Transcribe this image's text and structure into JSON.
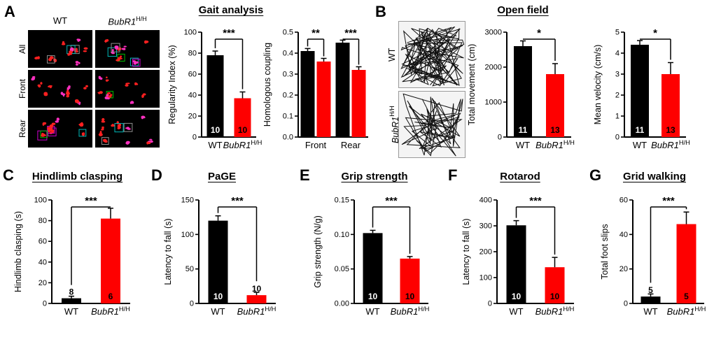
{
  "letters": {
    "A": "A",
    "B": "B",
    "C": "C",
    "D": "D",
    "E": "E",
    "F": "F",
    "G": "G"
  },
  "panelA": {
    "col_wt": "WT",
    "col_mut": {
      "base": "BubR1",
      "sup": "H/H"
    },
    "row_labels": [
      "All",
      "Front",
      "Rear"
    ]
  },
  "panelB": {
    "row_wt": "WT",
    "row_mut": {
      "base": "BubR1",
      "sup": "H/H"
    }
  },
  "chart_data": [
    {
      "id": "regularity-index",
      "panel": "A",
      "type": "bar",
      "title": "Gait analysis",
      "ylabel": "Regularity Index (%)",
      "ylim": [
        0,
        100
      ],
      "ytick_vals": [
        0,
        20,
        40,
        60,
        80,
        100
      ],
      "ytick_labels": [
        "0",
        "20",
        "40",
        "60",
        "80",
        "100"
      ],
      "categories": [
        {
          "label": "WT"
        },
        {
          "label": "BubR1",
          "sup": "H/H",
          "italic": true
        }
      ],
      "values": [
        78,
        37
      ],
      "errors": [
        4,
        6
      ],
      "bar_colors": [
        "#000000",
        "#fe0000"
      ],
      "n_labels": [
        "10",
        "10"
      ],
      "significance": "***"
    },
    {
      "id": "homologous-coupling",
      "panel": "A",
      "type": "grouped_bar",
      "title": null,
      "ylabel": "Homologous coupling",
      "ylim": [
        0,
        0.5
      ],
      "ytick_vals": [
        0,
        0.1,
        0.2,
        0.3,
        0.4,
        0.5
      ],
      "ytick_labels": [
        "0.0",
        "0.1",
        "0.2",
        "0.3",
        "0.4",
        "0.5"
      ],
      "groups": [
        {
          "label": "Front"
        },
        {
          "label": "Rear"
        }
      ],
      "series": [
        {
          "name": "WT",
          "color": "#000000",
          "values": [
            0.41,
            0.45
          ],
          "errors": [
            0.012,
            0.012
          ]
        },
        {
          "name": "BubR1 H/H",
          "color": "#fe0000",
          "values": [
            0.36,
            0.32
          ],
          "errors": [
            0.015,
            0.015
          ]
        }
      ],
      "significance_per_group": [
        "**",
        "***"
      ]
    },
    {
      "id": "total-movement",
      "panel": "B",
      "type": "bar",
      "title": "Open field",
      "ylabel": "Total movement (cm)",
      "ylim": [
        0,
        3000
      ],
      "ytick_vals": [
        0,
        1000,
        2000,
        3000
      ],
      "ytick_labels": [
        "0",
        "1000",
        "2000",
        "3000"
      ],
      "categories": [
        {
          "label": "WT"
        },
        {
          "label": "BubR1",
          "sup": "H/H",
          "italic": true
        }
      ],
      "values": [
        2600,
        1800
      ],
      "errors": [
        150,
        300
      ],
      "bar_colors": [
        "#000000",
        "#fe0000"
      ],
      "n_labels": [
        "11",
        "13"
      ],
      "significance": "*"
    },
    {
      "id": "mean-velocity",
      "panel": "B",
      "type": "bar",
      "title": null,
      "ylabel": "Mean velocity (cm/s)",
      "ylim": [
        0,
        5
      ],
      "ytick_vals": [
        0,
        1,
        2,
        3,
        4,
        5
      ],
      "ytick_labels": [
        "0",
        "1",
        "2",
        "3",
        "4",
        "5"
      ],
      "categories": [
        {
          "label": "WT"
        },
        {
          "label": "BubR1",
          "sup": "H/H",
          "italic": true
        }
      ],
      "values": [
        4.4,
        3.0
      ],
      "errors": [
        0.2,
        0.55
      ],
      "bar_colors": [
        "#000000",
        "#fe0000"
      ],
      "n_labels": [
        "11",
        "13"
      ],
      "significance": "*"
    },
    {
      "id": "hindlimb-clasping",
      "panel": "C",
      "type": "bar",
      "title": "Hindlimb clasping",
      "ylabel": "Hindlimb clasping (s)",
      "ylim": [
        0,
        100
      ],
      "ytick_vals": [
        0,
        20,
        40,
        60,
        80,
        100
      ],
      "ytick_labels": [
        "0",
        "20",
        "40",
        "60",
        "80",
        "100"
      ],
      "categories": [
        {
          "label": "WT"
        },
        {
          "label": "BubR1",
          "sup": "H/H",
          "italic": true
        }
      ],
      "values": [
        5,
        82
      ],
      "errors": [
        2,
        10
      ],
      "bar_colors": [
        "#000000",
        "#fe0000"
      ],
      "n_labels": [
        "8",
        "6"
      ],
      "significance": "***"
    },
    {
      "id": "page-latency",
      "panel": "D",
      "type": "bar",
      "title": "PaGE",
      "ylabel": "Latency to fall (s)",
      "ylim": [
        0,
        150
      ],
      "ytick_vals": [
        0,
        50,
        100,
        150
      ],
      "ytick_labels": [
        "0",
        "50",
        "100",
        "150"
      ],
      "categories": [
        {
          "label": "WT"
        },
        {
          "label": "BubR1",
          "sup": "H/H",
          "italic": true
        }
      ],
      "values": [
        120,
        12
      ],
      "errors": [
        7,
        4
      ],
      "bar_colors": [
        "#000000",
        "#fe0000"
      ],
      "n_labels": [
        "10",
        "10"
      ],
      "significance": "***"
    },
    {
      "id": "grip-strength",
      "panel": "E",
      "type": "bar",
      "title": "Grip strength",
      "ylabel": "Grip strength (N/g)",
      "ylim": [
        0,
        0.15
      ],
      "ytick_vals": [
        0,
        0.05,
        0.1,
        0.15
      ],
      "ytick_labels": [
        "0.00",
        "0.05",
        "0.10",
        "0.15"
      ],
      "categories": [
        {
          "label": "WT"
        },
        {
          "label": "BubR1",
          "sup": "H/H",
          "italic": true
        }
      ],
      "values": [
        0.102,
        0.065
      ],
      "errors": [
        0.004,
        0.003
      ],
      "bar_colors": [
        "#000000",
        "#fe0000"
      ],
      "n_labels": [
        "10",
        "10"
      ],
      "significance": "***"
    },
    {
      "id": "rotarod",
      "panel": "F",
      "type": "bar",
      "title": "Rotarod",
      "ylabel": "Latency to fall (s)",
      "ylim": [
        0,
        400
      ],
      "ytick_vals": [
        0,
        100,
        200,
        300,
        400
      ],
      "ytick_labels": [
        "0",
        "100",
        "200",
        "300",
        "400"
      ],
      "categories": [
        {
          "label": "WT"
        },
        {
          "label": "BubR1",
          "sup": "H/H",
          "italic": true
        }
      ],
      "values": [
        302,
        140
      ],
      "errors": [
        18,
        38
      ],
      "bar_colors": [
        "#000000",
        "#fe0000"
      ],
      "n_labels": [
        "10",
        "10"
      ],
      "significance": "***"
    },
    {
      "id": "grid-walking",
      "panel": "G",
      "type": "bar",
      "title": "Grid walking",
      "ylabel": "Total foot slips",
      "ylim": [
        0,
        60
      ],
      "ytick_vals": [
        0,
        20,
        40,
        60
      ],
      "ytick_labels": [
        "0",
        "20",
        "40",
        "60"
      ],
      "categories": [
        {
          "label": "WT"
        },
        {
          "label": "BubR1",
          "sup": "H/H",
          "italic": true
        }
      ],
      "values": [
        4,
        46
      ],
      "errors": [
        1.5,
        7
      ],
      "bar_colors": [
        "#000000",
        "#fe0000"
      ],
      "n_labels": [
        "5",
        "5"
      ],
      "significance": "***"
    }
  ]
}
